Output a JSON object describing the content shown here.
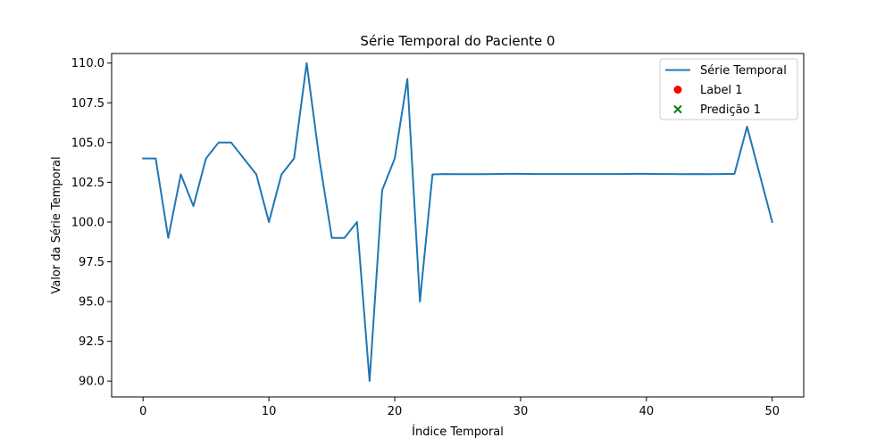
{
  "chart_data": {
    "type": "line",
    "title": "Série Temporal do Paciente 0",
    "xlabel": "Índice Temporal",
    "ylabel": "Valor da Série Temporal",
    "xlim": [
      -2.5,
      52.5
    ],
    "ylim": [
      89.0,
      110.6
    ],
    "xticks": [
      0,
      10,
      20,
      30,
      40,
      50
    ],
    "yticks": [
      90.0,
      92.5,
      95.0,
      97.5,
      100.0,
      102.5,
      105.0,
      107.5,
      110.0
    ],
    "grid": false,
    "legend_position": "top-right",
    "series": [
      {
        "name": "Série Temporal",
        "kind": "line",
        "color": "#1f77b4",
        "x": [
          0,
          1,
          2,
          3,
          4,
          5,
          6,
          7,
          8,
          9,
          10,
          11,
          12,
          13,
          14,
          15,
          16,
          17,
          18,
          19,
          20,
          21,
          22,
          23,
          24,
          25,
          26,
          27,
          28,
          29,
          30,
          31,
          32,
          33,
          34,
          35,
          36,
          37,
          38,
          39,
          40,
          41,
          42,
          43,
          44,
          45,
          46,
          47,
          48,
          49,
          50
        ],
        "y": [
          104.0,
          104.0,
          99.0,
          103.0,
          101.0,
          104.0,
          105.0,
          105.0,
          104.0,
          103.0,
          100.0,
          103.0,
          104.0,
          110.0,
          104.0,
          99.0,
          99.0,
          100.0,
          90.0,
          102.0,
          104.0,
          109.0,
          95.0,
          103.0,
          103.02,
          103.01,
          103.01,
          103.01,
          103.02,
          103.03,
          103.03,
          103.02,
          103.02,
          103.02,
          103.02,
          103.02,
          103.02,
          103.02,
          103.02,
          103.03,
          103.03,
          103.02,
          103.02,
          103.01,
          103.02,
          103.01,
          103.02,
          103.03,
          106.0,
          103.0,
          100.0
        ]
      },
      {
        "name": "Label 1",
        "kind": "scatter",
        "marker": "circle",
        "color": "#ff0000",
        "x": [],
        "y": []
      },
      {
        "name": "Predição 1",
        "kind": "scatter",
        "marker": "x",
        "color": "#008000",
        "x": [],
        "y": []
      }
    ]
  }
}
